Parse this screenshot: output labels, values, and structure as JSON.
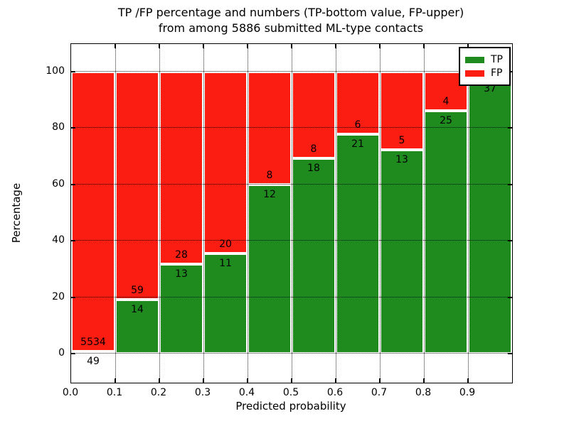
{
  "title": {
    "line1": "TP /FP percentage and numbers (TP-bottom value, FP-upper)",
    "line2": "from among 5886 submitted ML-type contacts"
  },
  "axes": {
    "xlabel": "Predicted probability",
    "ylabel": "Percentage",
    "xtick_labels": [
      "0.0",
      "0.1",
      "0.2",
      "0.3",
      "0.4",
      "0.5",
      "0.6",
      "0.7",
      "0.8",
      "0.9"
    ],
    "ytick_values": [
      0,
      20,
      40,
      60,
      80,
      100
    ],
    "ylim": [
      -10.3,
      109.8
    ],
    "xlim": [
      0.0,
      1.0
    ],
    "grid": "dotted-black-on"
  },
  "legend": {
    "position": "upper-right",
    "entries": [
      {
        "label": "TP",
        "color": "#1f8b1f"
      },
      {
        "label": "FP",
        "color": "#fb1d12"
      }
    ]
  },
  "colors": {
    "tp": "#1f8b1f",
    "fp": "#fb1d12",
    "bar_edge": "#ffffff",
    "grid": "#000000",
    "background": "#ffffff"
  },
  "chart_data": {
    "type": "bar",
    "stacked": true,
    "normalization": "each 0.1-wide probability bin scaled to 100%",
    "total_contacts": 5886,
    "bin_width": 0.1,
    "x_edges": [
      0.0,
      0.1,
      0.2,
      0.3,
      0.4,
      0.5,
      0.6,
      0.7,
      0.8,
      0.9,
      1.0
    ],
    "series": [
      {
        "name": "TP",
        "values": [
          49,
          14,
          13,
          11,
          12,
          18,
          21,
          13,
          25,
          37
        ]
      },
      {
        "name": "FP",
        "values": [
          5534,
          59,
          28,
          20,
          8,
          8,
          6,
          5,
          4,
          1
        ]
      }
    ],
    "bins": [
      {
        "range": "0.0-0.1",
        "tp": 49,
        "fp": 5534,
        "fp_label_visible": true
      },
      {
        "range": "0.1-0.2",
        "tp": 14,
        "fp": 59,
        "fp_label_visible": true
      },
      {
        "range": "0.2-0.3",
        "tp": 13,
        "fp": 28,
        "fp_label_visible": true
      },
      {
        "range": "0.3-0.4",
        "tp": 11,
        "fp": 20,
        "fp_label_visible": true
      },
      {
        "range": "0.4-0.5",
        "tp": 12,
        "fp": 8,
        "fp_label_visible": true
      },
      {
        "range": "0.5-0.6",
        "tp": 18,
        "fp": 8,
        "fp_label_visible": true
      },
      {
        "range": "0.6-0.7",
        "tp": 21,
        "fp": 6,
        "fp_label_visible": true
      },
      {
        "range": "0.7-0.8",
        "tp": 13,
        "fp": 5,
        "fp_label_visible": true
      },
      {
        "range": "0.8-0.9",
        "tp": 25,
        "fp": 4,
        "fp_label_visible": true
      },
      {
        "range": "0.9-1.0",
        "tp": 37,
        "fp": 1,
        "fp_label_visible": false
      }
    ],
    "tp_percent_approx": [
      0.9,
      19.2,
      31.7,
      35.5,
      60.0,
      69.2,
      77.8,
      72.2,
      86.2,
      97.4
    ]
  }
}
